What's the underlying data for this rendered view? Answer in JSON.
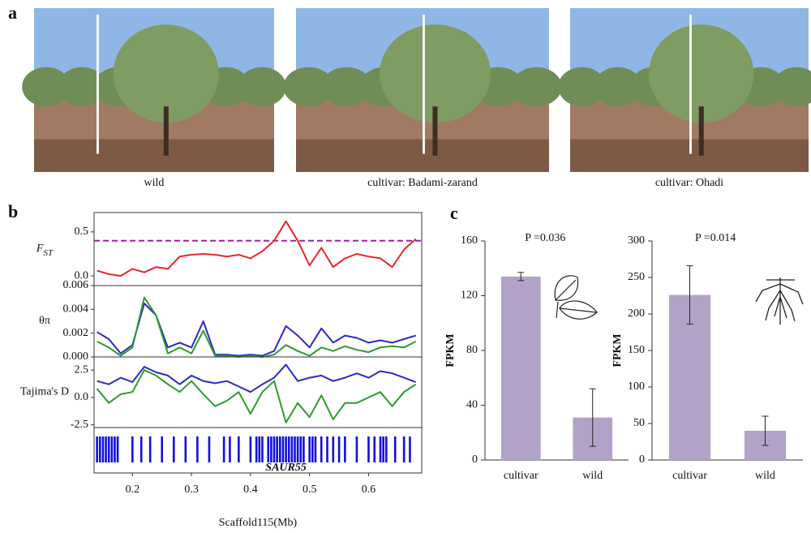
{
  "panel_labels": [
    "a",
    "b",
    "c"
  ],
  "photos": [
    {
      "caption": "wild"
    },
    {
      "caption": "cultivar: Badami-zarand"
    },
    {
      "caption": "cultivar: Ohadi"
    }
  ],
  "chart_data": [
    {
      "type": "line",
      "ylabel": "F",
      "ylabel_subscript": "ST",
      "x": [
        0.14,
        0.16,
        0.18,
        0.2,
        0.22,
        0.24,
        0.26,
        0.28,
        0.3,
        0.32,
        0.34,
        0.36,
        0.38,
        0.4,
        0.42,
        0.44,
        0.46,
        0.48,
        0.5,
        0.52,
        0.54,
        0.56,
        0.58,
        0.6,
        0.62,
        0.64,
        0.66,
        0.68
      ],
      "series": [
        {
          "color": "#e8262a",
          "values": [
            0.06,
            0.02,
            0.0,
            0.08,
            0.04,
            0.1,
            0.08,
            0.22,
            0.24,
            0.25,
            0.24,
            0.22,
            0.24,
            0.2,
            0.28,
            0.4,
            0.62,
            0.4,
            0.12,
            0.32,
            0.1,
            0.2,
            0.25,
            0.22,
            0.2,
            0.1,
            0.3,
            0.42
          ]
        }
      ],
      "threshold": 0.4,
      "threshold_color": "#a020a0",
      "xlim": [
        0.135,
        0.69
      ],
      "ylim": [
        -0.11,
        0.72
      ],
      "yticks": [
        {
          "value": 0,
          "label": "0.0"
        },
        0.5
      ]
    },
    {
      "type": "line",
      "ylabel": "θπ",
      "x": [
        0.14,
        0.16,
        0.18,
        0.2,
        0.22,
        0.24,
        0.26,
        0.28,
        0.3,
        0.32,
        0.34,
        0.36,
        0.38,
        0.4,
        0.42,
        0.44,
        0.46,
        0.48,
        0.5,
        0.52,
        0.54,
        0.56,
        0.58,
        0.6,
        0.62,
        0.64,
        0.66,
        0.68
      ],
      "series": [
        {
          "color": "#2b2bbf",
          "values": [
            0.0021,
            0.0015,
            0.0003,
            0.001,
            0.0045,
            0.0035,
            0.0008,
            0.0012,
            0.0008,
            0.003,
            0.0002,
            0.0002,
            0.0001,
            0.0002,
            0.0001,
            0.0005,
            0.0026,
            0.0018,
            0.0008,
            0.0024,
            0.0012,
            0.0018,
            0.0016,
            0.0012,
            0.0014,
            0.0012,
            0.0015,
            0.0018
          ]
        },
        {
          "color": "#2e9a2e",
          "values": [
            0.0013,
            0.0008,
            0.0001,
            0.0008,
            0.005,
            0.0035,
            0.0003,
            0.0008,
            0.0003,
            0.0022,
            0.0001,
            0.0001,
            0.0,
            0.0001,
            0.0,
            0.0002,
            0.001,
            0.0005,
            0.0001,
            0.0008,
            0.0005,
            0.0009,
            0.0006,
            0.0004,
            0.0008,
            0.0009,
            0.0008,
            0.0013
          ]
        }
      ],
      "xlim": [
        0.135,
        0.69
      ],
      "ylim": [
        0,
        0.006
      ],
      "yticks": [
        {
          "value": 0,
          "label": "0.000"
        },
        0.002,
        0.004,
        0.006
      ]
    },
    {
      "type": "line",
      "ylabel": "Tajima's D",
      "x": [
        0.14,
        0.16,
        0.18,
        0.2,
        0.22,
        0.24,
        0.26,
        0.28,
        0.3,
        0.32,
        0.34,
        0.36,
        0.38,
        0.4,
        0.42,
        0.44,
        0.46,
        0.48,
        0.5,
        0.52,
        0.54,
        0.56,
        0.58,
        0.6,
        0.62,
        0.64,
        0.66,
        0.68
      ],
      "series": [
        {
          "color": "#2b2bbf",
          "values": [
            1.5,
            1.2,
            1.8,
            1.4,
            2.8,
            2.3,
            2.0,
            1.2,
            2.0,
            1.5,
            1.3,
            1.5,
            1.0,
            0.5,
            1.2,
            1.8,
            3.0,
            1.5,
            1.8,
            2.0,
            1.5,
            1.8,
            2.2,
            1.8,
            2.4,
            2.2,
            1.8,
            1.4
          ]
        },
        {
          "color": "#2e9a2e",
          "values": [
            0.8,
            -0.5,
            0.3,
            0.5,
            2.5,
            2.0,
            1.2,
            0.5,
            1.5,
            0.3,
            -0.8,
            -0.3,
            0.5,
            -1.5,
            0.5,
            1.5,
            -2.3,
            -0.5,
            -1.8,
            0.2,
            -2.0,
            -0.5,
            -0.5,
            0.0,
            0.5,
            -0.8,
            0.5,
            1.2
          ]
        }
      ],
      "xlim": [
        0.135,
        0.69
      ],
      "ylim": [
        -2.75,
        3.7
      ],
      "yticks": [
        -2.5,
        {
          "value": 0,
          "label": "0.0"
        },
        2.5
      ]
    },
    {
      "type": "track",
      "color": "#1010e0",
      "genes": [
        0.14,
        0.145,
        0.15,
        0.155,
        0.16,
        0.165,
        0.17,
        0.175,
        0.2,
        0.215,
        0.23,
        0.25,
        0.27,
        0.29,
        0.31,
        0.33,
        0.355,
        0.365,
        0.38,
        0.4,
        0.41,
        0.415,
        0.42,
        0.43,
        0.435,
        0.44,
        0.445,
        0.45,
        0.455,
        0.46,
        0.465,
        0.47,
        0.475,
        0.48,
        0.485,
        0.49,
        0.5,
        0.505,
        0.51,
        0.52,
        0.53,
        0.54,
        0.55,
        0.56,
        0.58,
        0.6,
        0.61,
        0.62,
        0.625,
        0.63,
        0.645,
        0.66,
        0.67
      ],
      "annotation": {
        "text": "SAUR55",
        "x": 0.46,
        "color": "#d0202a"
      },
      "xlim": [
        0.135,
        0.69
      ],
      "xticks": [
        0.2,
        0.3,
        0.4,
        0.5,
        0.6
      ],
      "xlabel": "Scaffold115(Mb)"
    },
    {
      "type": "bar",
      "title": "P =0.036",
      "ylabel": "FPKM",
      "categories": [
        "cultivar",
        "wild"
      ],
      "values": [
        134,
        31
      ],
      "errors": [
        3,
        21
      ],
      "color": "#b3a2c7",
      "ylim": [
        0,
        160
      ],
      "yticks": [
        0,
        40,
        80,
        120,
        160
      ]
    },
    {
      "type": "bar",
      "title": "P =0.014",
      "ylabel": "FPKM",
      "categories": [
        "cultivar",
        "wild"
      ],
      "values": [
        226,
        40
      ],
      "errors": [
        40,
        20
      ],
      "color": "#b3a2c7",
      "ylim": [
        0,
        300
      ],
      "yticks": [
        0,
        50,
        100,
        150,
        200,
        250,
        300
      ]
    }
  ]
}
